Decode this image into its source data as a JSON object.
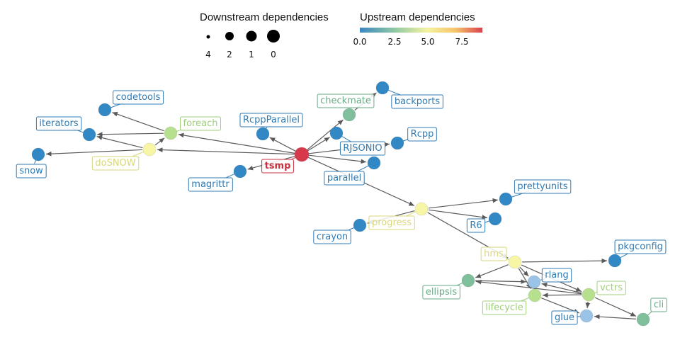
{
  "legend": {
    "downstream": {
      "title": "Downstream dependencies",
      "ticks": [
        "4",
        "2",
        "1",
        "0"
      ]
    },
    "upstream": {
      "title": "Upstream dependencies",
      "ticks": [
        "0.0",
        "2.5",
        "5.0",
        "7.5"
      ],
      "colors": [
        "#3a88c0",
        "#8ec7a3",
        "#f4f3a0",
        "#f7c36d",
        "#d8414d"
      ]
    }
  },
  "colors": {
    "blue": "#3288c4",
    "teal": "#7fbf9b",
    "lightgreen": "#b7e08e",
    "yellow": "#f7f5a6",
    "lightblue": "#9ac3e6",
    "red": "#d7394b",
    "edge": "#5a5a5a"
  },
  "graph": {
    "nodes": [
      {
        "id": "tsmp",
        "label": "tsmp",
        "color": "red",
        "downstream": 0,
        "bold": true
      },
      {
        "id": "codetools",
        "label": "codetools",
        "color": "blue",
        "downstream": 1
      },
      {
        "id": "iterators",
        "label": "iterators",
        "color": "blue",
        "downstream": 2
      },
      {
        "id": "foreach",
        "label": "foreach",
        "color": "lightgreen",
        "downstream": 1
      },
      {
        "id": "doSNOW",
        "label": "doSNOW",
        "color": "yellow",
        "downstream": 1
      },
      {
        "id": "snow",
        "label": "snow",
        "color": "blue",
        "downstream": 1
      },
      {
        "id": "RcppParallel",
        "label": "RcppParallel",
        "color": "blue",
        "downstream": 1
      },
      {
        "id": "magrittr",
        "label": "magrittr",
        "color": "blue",
        "downstream": 1
      },
      {
        "id": "checkmate",
        "label": "checkmate",
        "color": "teal",
        "downstream": 1
      },
      {
        "id": "backports",
        "label": "backports",
        "color": "blue",
        "downstream": 1
      },
      {
        "id": "RJSONIO",
        "label": "RJSONIO",
        "color": "blue",
        "downstream": 1
      },
      {
        "id": "Rcpp",
        "label": "Rcpp",
        "color": "blue",
        "downstream": 1
      },
      {
        "id": "parallel",
        "label": "parallel",
        "color": "blue",
        "downstream": 1
      },
      {
        "id": "progress",
        "label": "progress",
        "color": "yellow",
        "downstream": 1
      },
      {
        "id": "prettyunits",
        "label": "prettyunits",
        "color": "blue",
        "downstream": 1
      },
      {
        "id": "R6",
        "label": "R6",
        "color": "blue",
        "downstream": 1
      },
      {
        "id": "crayon",
        "label": "crayon",
        "color": "blue",
        "downstream": 1
      },
      {
        "id": "hms",
        "label": "hms",
        "color": "yellow",
        "downstream": 1
      },
      {
        "id": "pkgconfig",
        "label": "pkgconfig",
        "color": "blue",
        "downstream": 1
      },
      {
        "id": "rlang",
        "label": "rlang",
        "color": "lightblue",
        "downstream": 4
      },
      {
        "id": "ellipsis",
        "label": "ellipsis",
        "color": "teal",
        "downstream": 2
      },
      {
        "id": "lifecycle",
        "label": "lifecycle",
        "color": "lightgreen",
        "downstream": 2
      },
      {
        "id": "vctrs",
        "label": "vctrs",
        "color": "lightgreen",
        "downstream": 1
      },
      {
        "id": "glue",
        "label": "glue",
        "color": "lightblue",
        "downstream": 2
      },
      {
        "id": "cli",
        "label": "cli",
        "color": "teal",
        "downstream": 1
      }
    ],
    "edges": [
      [
        "tsmp",
        "foreach"
      ],
      [
        "tsmp",
        "doSNOW"
      ],
      [
        "tsmp",
        "RcppParallel"
      ],
      [
        "tsmp",
        "magrittr"
      ],
      [
        "tsmp",
        "checkmate"
      ],
      [
        "tsmp",
        "RJSONIO"
      ],
      [
        "tsmp",
        "Rcpp"
      ],
      [
        "tsmp",
        "parallel"
      ],
      [
        "tsmp",
        "progress"
      ],
      [
        "foreach",
        "codetools"
      ],
      [
        "foreach",
        "iterators"
      ],
      [
        "doSNOW",
        "foreach"
      ],
      [
        "doSNOW",
        "iterators"
      ],
      [
        "doSNOW",
        "snow"
      ],
      [
        "checkmate",
        "backports"
      ],
      [
        "progress",
        "prettyunits"
      ],
      [
        "progress",
        "R6"
      ],
      [
        "progress",
        "crayon"
      ],
      [
        "progress",
        "hms"
      ],
      [
        "hms",
        "pkgconfig"
      ],
      [
        "hms",
        "ellipsis"
      ],
      [
        "hms",
        "lifecycle"
      ],
      [
        "hms",
        "rlang"
      ],
      [
        "hms",
        "vctrs"
      ],
      [
        "ellipsis",
        "rlang"
      ],
      [
        "lifecycle",
        "rlang"
      ],
      [
        "lifecycle",
        "glue"
      ],
      [
        "vctrs",
        "rlang"
      ],
      [
        "vctrs",
        "glue"
      ],
      [
        "vctrs",
        "ellipsis"
      ],
      [
        "vctrs",
        "lifecycle"
      ],
      [
        "cli",
        "glue"
      ],
      [
        "vctrs",
        "cli"
      ]
    ]
  }
}
